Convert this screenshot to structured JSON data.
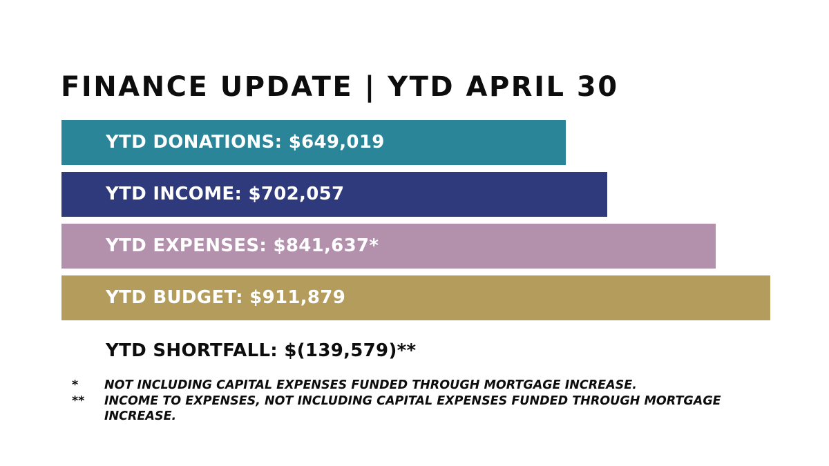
{
  "title": "FINANCE UPDATE | YTD APRIL 30",
  "chart_data": {
    "type": "bar",
    "orientation": "horizontal",
    "categories": [
      "YTD DONATIONS",
      "YTD INCOME",
      "YTD EXPENSES",
      "YTD BUDGET"
    ],
    "values": [
      649019,
      702057,
      841637,
      911879
    ],
    "labels": [
      "YTD DONATIONS: $649,019",
      "YTD INCOME: $702,057",
      "YTD EXPENSES: $841,637*",
      "YTD BUDGET: $911,879"
    ],
    "colors": [
      "#2b8599",
      "#2f3a7c",
      "#b391ad",
      "#b39c5c"
    ],
    "grid": false,
    "legend": "none"
  },
  "shortfall": "YTD SHORTFALL: $(139,579)**",
  "footnotes": [
    {
      "mark": "*",
      "text": "NOT INCLUDING CAPITAL EXPENSES FUNDED THROUGH MORTGAGE INCREASE."
    },
    {
      "mark": "**",
      "text": "INCOME TO EXPENSES, NOT INCLUDING CAPITAL EXPENSES FUNDED THROUGH MORTGAGE INCREASE."
    }
  ]
}
